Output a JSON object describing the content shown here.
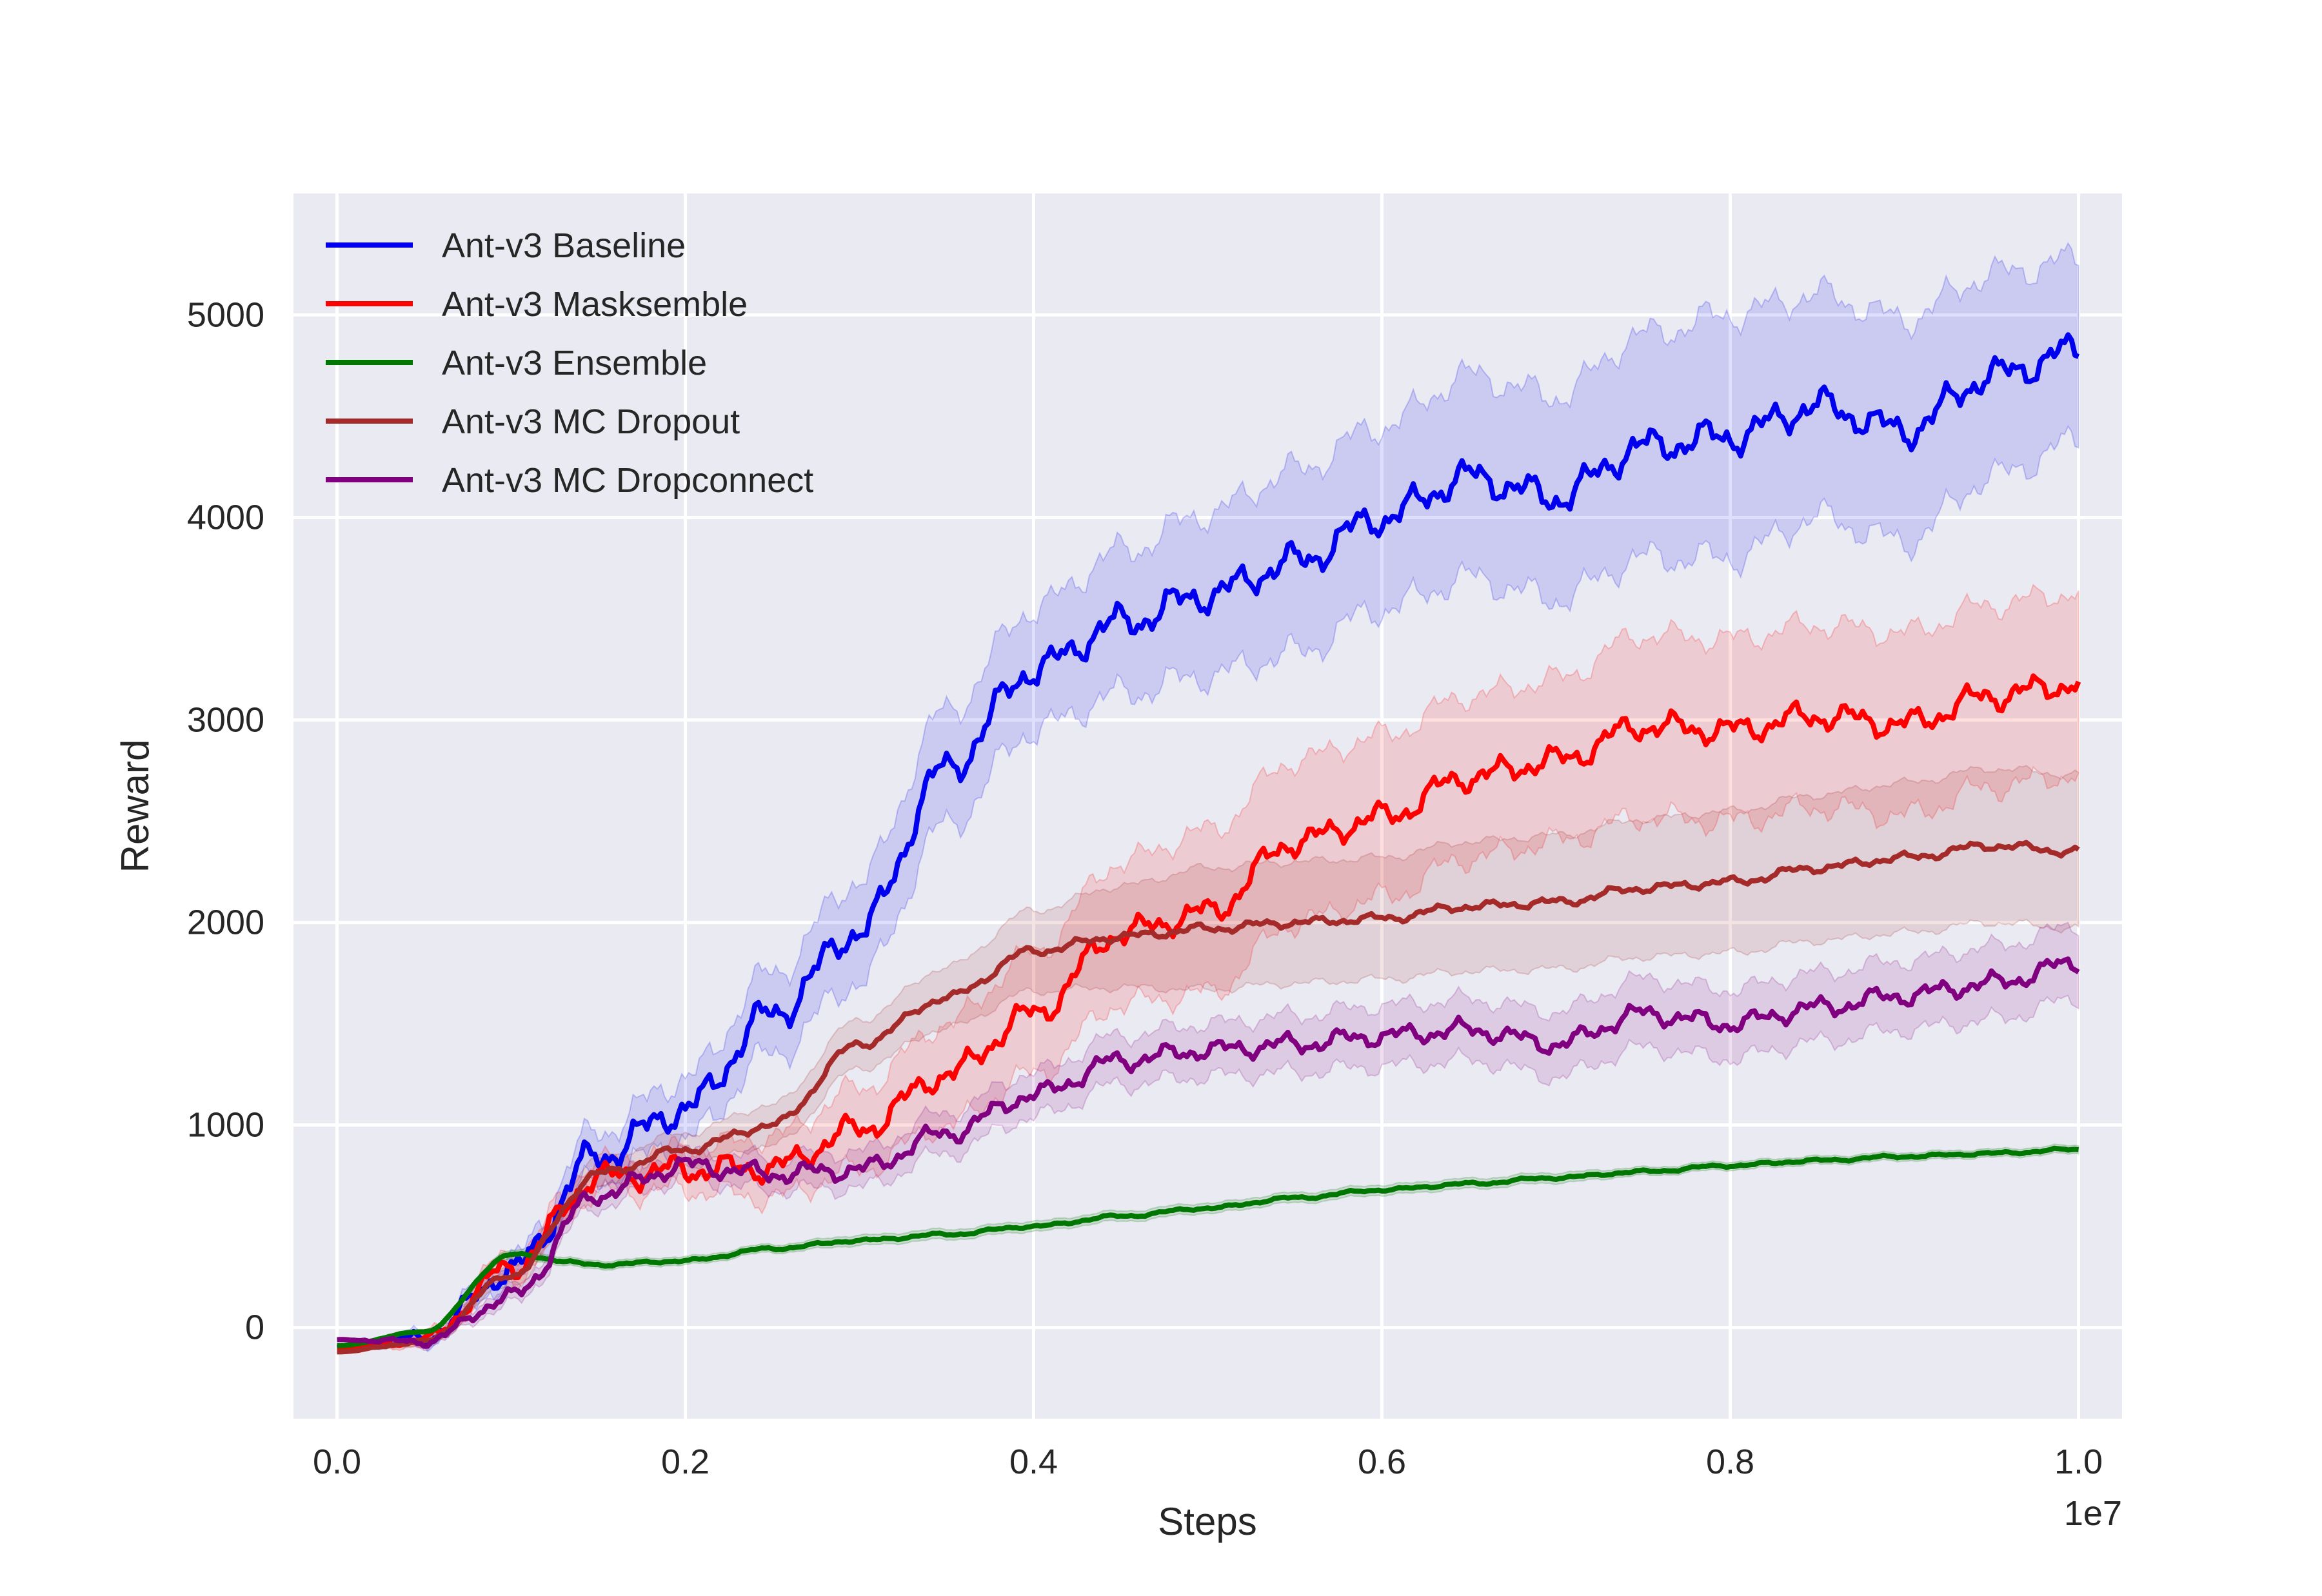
{
  "chart_data": {
    "type": "line",
    "title": "",
    "xlabel": "Steps",
    "ylabel": "Reward",
    "x_offset_label": "1e7",
    "xlim": [
      -0.025,
      1.025
    ],
    "ylim": [
      -450,
      5600
    ],
    "xticks": [
      0.0,
      0.2,
      0.4,
      0.6,
      0.8,
      1.0
    ],
    "xtick_labels": [
      "0.0",
      "0.2",
      "0.4",
      "0.6",
      "0.8",
      "1.0"
    ],
    "yticks": [
      0,
      1000,
      2000,
      3000,
      4000,
      5000
    ],
    "ytick_labels": [
      "0",
      "1000",
      "2000",
      "3000",
      "4000",
      "5000"
    ],
    "grid": true,
    "legend_position": "top-left",
    "x": [
      0.0,
      0.05,
      0.1,
      0.15,
      0.2,
      0.25,
      0.3,
      0.35,
      0.4,
      0.45,
      0.5,
      0.55,
      0.6,
      0.65,
      0.7,
      0.75,
      0.8,
      0.85,
      0.9,
      0.95,
      1.0
    ],
    "series": [
      {
        "name": "Ant-v3 Baseline",
        "color": "#0000ee",
        "values": [
          -100,
          -50,
          280,
          850,
          1080,
          1550,
          1960,
          2760,
          3250,
          3480,
          3620,
          3780,
          4000,
          4200,
          4100,
          4350,
          4400,
          4550,
          4430,
          4700,
          4820
        ],
        "band": [
          0,
          30,
          60,
          120,
          150,
          200,
          250,
          280,
          300,
          350,
          400,
          450,
          450,
          500,
          500,
          550,
          600,
          550,
          550,
          500,
          450
        ]
      },
      {
        "name": "Ant-v3 Masksemble",
        "color": "#ff0000",
        "values": [
          -110,
          -60,
          300,
          740,
          780,
          790,
          980,
          1250,
          1550,
          1950,
          2050,
          2400,
          2520,
          2720,
          2800,
          2970,
          2950,
          3020,
          2980,
          3120,
          3180
        ],
        "band": [
          0,
          30,
          60,
          80,
          100,
          150,
          200,
          250,
          300,
          350,
          400,
          400,
          400,
          400,
          400,
          450,
          450,
          450,
          450,
          450,
          450
        ]
      },
      {
        "name": "Ant-v3 Ensemble",
        "color": "#007700",
        "values": [
          -90,
          -20,
          360,
          310,
          330,
          390,
          430,
          460,
          500,
          550,
          590,
          640,
          680,
          710,
          740,
          770,
          800,
          825,
          845,
          860,
          880
        ],
        "band": [
          0,
          10,
          20,
          20,
          20,
          20,
          25,
          25,
          25,
          25,
          25,
          25,
          25,
          25,
          25,
          20,
          20,
          20,
          20,
          20,
          20
        ]
      },
      {
        "name": "Ant-v3 MC Dropout",
        "color": "#a52a2a",
        "values": [
          -120,
          -70,
          260,
          760,
          880,
          1000,
          1400,
          1630,
          1860,
          1930,
          1970,
          2000,
          2020,
          2080,
          2100,
          2170,
          2200,
          2270,
          2320,
          2380,
          2350
        ],
        "band": [
          0,
          20,
          50,
          70,
          80,
          100,
          120,
          150,
          200,
          250,
          300,
          300,
          300,
          320,
          330,
          340,
          350,
          360,
          370,
          380,
          380
        ]
      },
      {
        "name": "Ant-v3 MC Dropconnect",
        "color": "#800080",
        "values": [
          -60,
          -70,
          150,
          660,
          800,
          760,
          780,
          960,
          1150,
          1320,
          1370,
          1400,
          1440,
          1470,
          1400,
          1550,
          1500,
          1580,
          1640,
          1700,
          1800
        ],
        "band": [
          0,
          20,
          40,
          60,
          70,
          80,
          90,
          100,
          110,
          120,
          130,
          140,
          150,
          150,
          160,
          170,
          170,
          170,
          170,
          180,
          180
        ]
      }
    ]
  }
}
